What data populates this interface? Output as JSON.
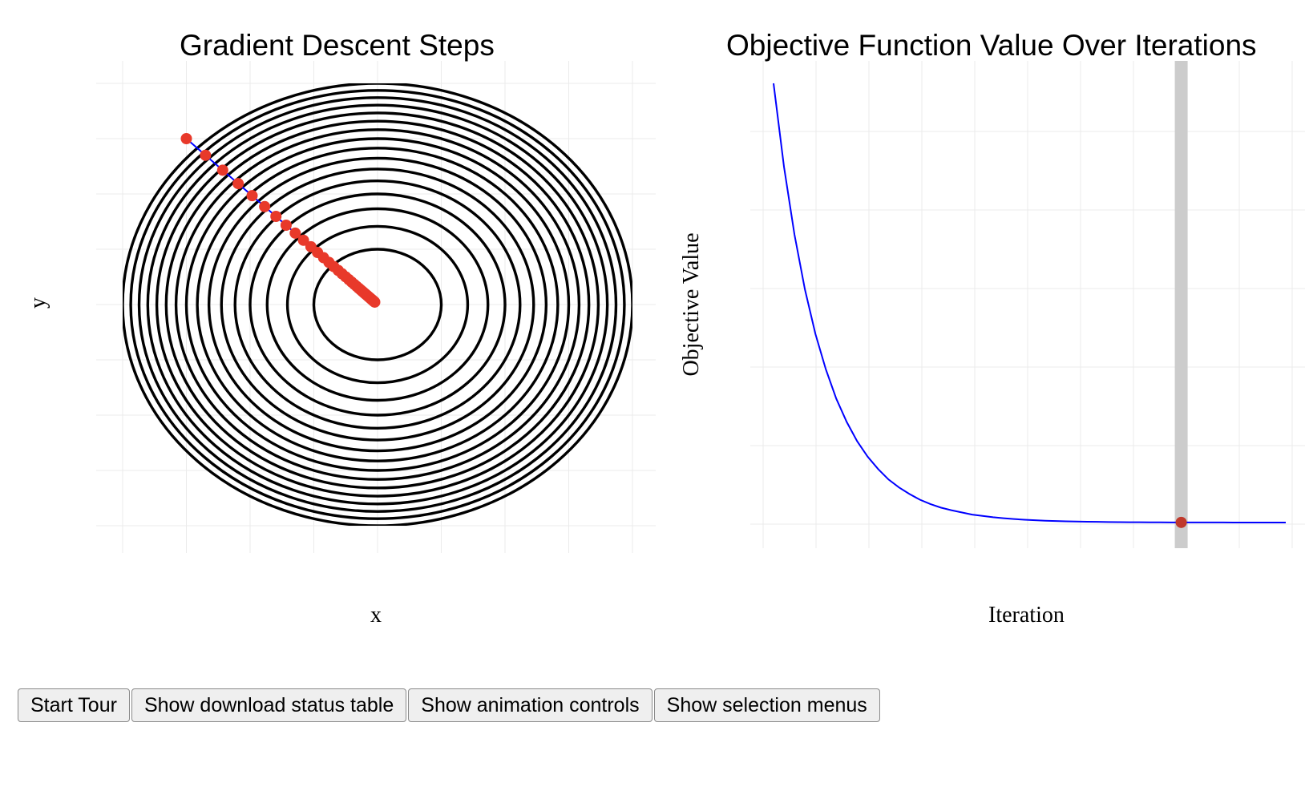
{
  "chart_data": [
    {
      "type": "contour",
      "title": "Gradient Descent Steps",
      "xlabel": "x",
      "ylabel": "y",
      "xlim": [
        -2,
        2
      ],
      "ylim": [
        -2,
        2
      ],
      "grid": true,
      "contour_levels": [
        0.5,
        1,
        1.5,
        2,
        2.5,
        3,
        3.5,
        4,
        4.5,
        5,
        5.5,
        6,
        6.5,
        7,
        7.5,
        8
      ],
      "path_color": "#0000ff",
      "point_color": "#e8392a",
      "line_color": "#000000",
      "path": {
        "start": [
          -1.5,
          1.5
        ],
        "end": [
          0,
          0
        ],
        "decay": 0.9,
        "steps": 40
      }
    },
    {
      "type": "line",
      "title": "Objective Function Value Over Iterations",
      "xlabel": "Iteration",
      "ylabel": "Objective Value",
      "xlim": [
        0,
        50
      ],
      "grid": true,
      "line_color": "#0000ff",
      "marker_color": "#c0392b",
      "highlight_color": "#cccccc",
      "current_iteration": 40,
      "series": [
        {
          "x": [
            1,
            2,
            3,
            4,
            5,
            6,
            7,
            8,
            9,
            10,
            11,
            12,
            13,
            14,
            15,
            16,
            17,
            18,
            19,
            20,
            21,
            22,
            23,
            24,
            25,
            26,
            27,
            28,
            29,
            30,
            31,
            32,
            33,
            34,
            35,
            36,
            37,
            38,
            39,
            40,
            41,
            42,
            43,
            44,
            45,
            46,
            47,
            48,
            49,
            50
          ],
          "y": [
            1.0,
            0.81,
            0.656,
            0.531,
            0.43,
            0.349,
            0.282,
            0.229,
            0.185,
            0.15,
            0.122,
            0.098,
            0.08,
            0.065,
            0.052,
            0.042,
            0.034,
            0.028,
            0.023,
            0.018,
            0.015,
            0.012,
            0.0098,
            0.0079,
            0.0064,
            0.0052,
            0.0042,
            0.0034,
            0.0027,
            0.0022,
            0.0018,
            0.0015,
            0.0012,
            0.00095,
            0.00077,
            0.00062,
            0.0005,
            0.00041,
            0.00033,
            0.00027,
            0.00022,
            0.00018,
            0.00014,
            0.00012,
            9.4e-05,
            7.6e-05,
            6.1e-05,
            5e-05,
            4e-05,
            3.2e-05
          ]
        }
      ]
    }
  ],
  "toolbar": {
    "start_tour": "Start Tour",
    "download_status": "Show download status table",
    "animation_controls": "Show animation controls",
    "selection_menus": "Show selection menus"
  }
}
